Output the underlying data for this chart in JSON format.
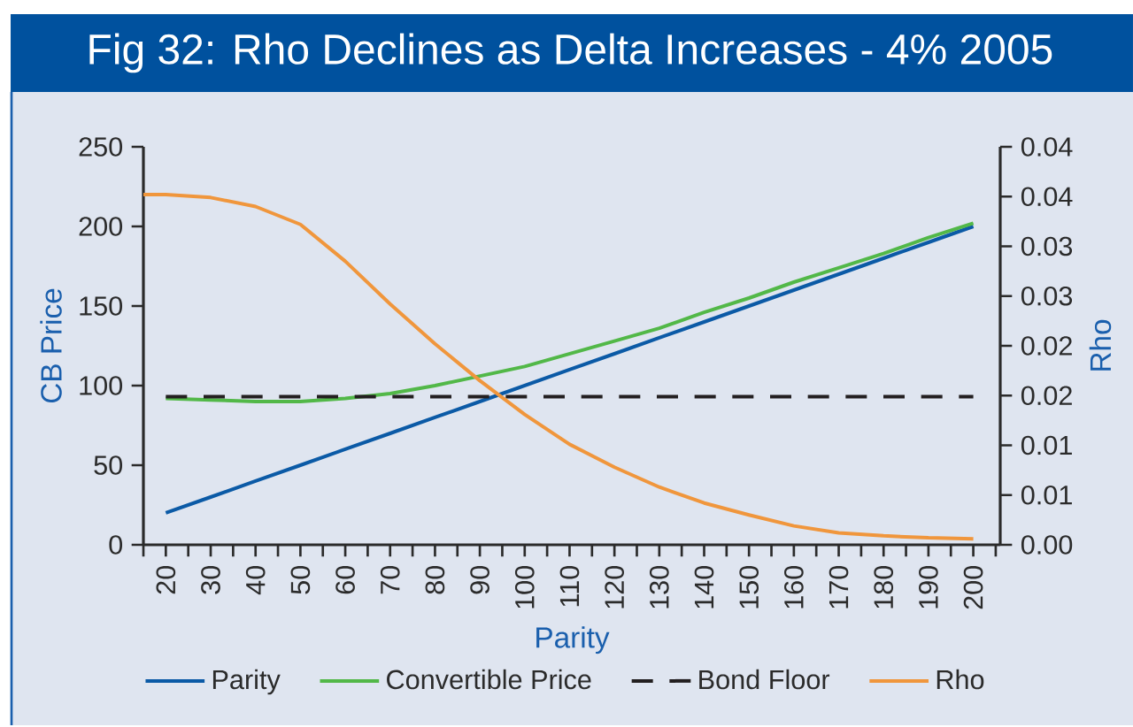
{
  "chart_data": {
    "type": "line",
    "title": "Fig 32: Rho Declines as Delta Increases - 4% 2005",
    "xlabel": "Parity",
    "ylabel": "CB Price",
    "y2label": "Rho",
    "x": [
      20,
      30,
      40,
      50,
      60,
      70,
      80,
      90,
      100,
      110,
      120,
      130,
      140,
      150,
      160,
      170,
      180,
      190,
      200
    ],
    "series": [
      {
        "name": "Parity",
        "color": "#0b5aa6",
        "values": [
          20,
          30,
          40,
          50,
          60,
          70,
          80,
          90,
          100,
          110,
          120,
          130,
          140,
          150,
          160,
          170,
          180,
          190,
          200
        ]
      },
      {
        "name": "Convertible Price",
        "color": "#52b848",
        "values": [
          92,
          91,
          90,
          90,
          92,
          95,
          100,
          106,
          112,
          120,
          128,
          136,
          146,
          155,
          165,
          174,
          183,
          193,
          202
        ]
      },
      {
        "name": "Bond Floor",
        "color": "#231f20",
        "line_style": "dashed",
        "x": [
          20,
          200
        ],
        "values": [
          93,
          93
        ]
      },
      {
        "name": "Rho",
        "color": "#f0963c",
        "axis": "y2",
        "x": [
          15,
          20,
          30,
          40,
          50,
          60,
          70,
          80,
          90,
          100,
          110,
          120,
          130,
          140,
          150,
          160,
          170,
          180,
          190,
          200
        ],
        "values": [
          0.0352,
          0.0352,
          0.0349,
          0.034,
          0.0322,
          0.0285,
          0.0242,
          0.0202,
          0.0165,
          0.0131,
          0.0101,
          0.0078,
          0.0058,
          0.0042,
          0.003,
          0.0019,
          0.0012,
          0.0009,
          0.0007,
          0.0006
        ]
      }
    ],
    "xlim": [
      15,
      206
    ],
    "xticks": [
      {
        "value": 15,
        "label": null
      },
      20,
      {
        "value": 25,
        "label": null
      },
      30,
      {
        "value": 35,
        "label": null
      },
      40,
      {
        "value": 45,
        "label": null
      },
      50,
      {
        "value": 55,
        "label": null
      },
      60,
      {
        "value": 65,
        "label": null
      },
      70,
      {
        "value": 75,
        "label": null
      },
      80,
      {
        "value": 85,
        "label": null
      },
      90,
      {
        "value": 95,
        "label": null
      },
      100,
      {
        "value": 105,
        "label": null
      },
      110,
      {
        "value": 115,
        "label": null
      },
      120,
      {
        "value": 125,
        "label": null
      },
      130,
      {
        "value": 135,
        "label": null
      },
      140,
      {
        "value": 145,
        "label": null
      },
      150,
      {
        "value": 155,
        "label": null
      },
      160,
      {
        "value": 165,
        "label": null
      },
      170,
      {
        "value": 175,
        "label": null
      },
      180,
      {
        "value": 185,
        "label": null
      },
      190,
      {
        "value": 195,
        "label": null
      },
      200,
      {
        "value": 205,
        "label": null
      }
    ],
    "ylim": [
      0,
      250
    ],
    "yticks": [
      0,
      50,
      100,
      150,
      200,
      250
    ],
    "y2lim": [
      0,
      0.04
    ],
    "y2ticks": [
      {
        "value": 0,
        "label": "0.00"
      },
      {
        "value": 0.005,
        "label": "0.01"
      },
      {
        "value": 0.01,
        "label": "0.01"
      },
      {
        "value": 0.015,
        "label": "0.02"
      },
      {
        "value": 0.02,
        "label": "0.02"
      },
      {
        "value": 0.025,
        "label": "0.03"
      },
      {
        "value": 0.03,
        "label": "0.03"
      },
      {
        "value": 0.035,
        "label": "0.04"
      },
      {
        "value": 0.04,
        "label": "0.04"
      }
    ],
    "legend": "bottom"
  }
}
